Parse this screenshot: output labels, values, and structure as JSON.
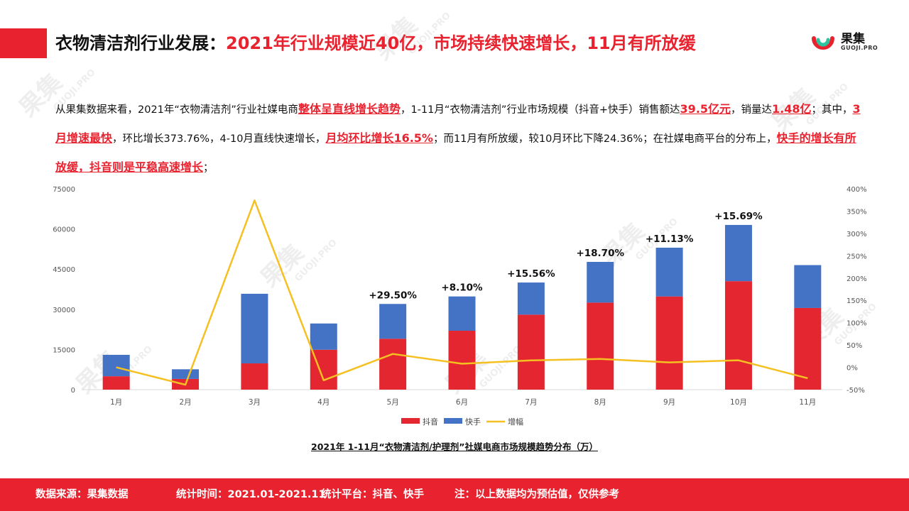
{
  "header": {
    "title_dark": "衣物清洁剂行业发展：",
    "title_red": "2021年行业规模近40亿，市场持续快速增长，11月有所放缓"
  },
  "logo": {
    "name_cn": "果集",
    "name_en": "GUOJI.PRO"
  },
  "watermark": {
    "text_cn": "果集",
    "text_en": "GUOJI.PRO"
  },
  "summary": {
    "p1": "从果集数据来看，2021年“衣物清洁剂”行业社媒电商",
    "hl1": "整体呈直线增长趋势",
    "p2": "，1-11月“衣物清洁剂”行业市场规模（抖音+快手）销售额达",
    "hl2": "39.5亿元",
    "p3": "，销量达",
    "hl3": "1.48亿",
    "p4": "；其中，",
    "hl4": "3月增速最快",
    "p5": "，环比增长373.76%，4-10月直线快速增长，",
    "hl5": "月均环比增长16.5%",
    "p6": "；而11月有所放缓，较10月环比下降24.36%；在社媒电商平台的分布上，",
    "hl6": "快手的增长有所放缓，抖音则是平稳高速增长",
    "p7": "；"
  },
  "chart_data": {
    "type": "bar",
    "stacked": true,
    "categories": [
      "1月",
      "2月",
      "3月",
      "4月",
      "5月",
      "6月",
      "7月",
      "8月",
      "9月",
      "10月",
      "11月"
    ],
    "series": [
      {
        "name": "抖音",
        "type": "bar",
        "color": "#e3262f",
        "values": [
          5000,
          4000,
          9800,
          14900,
          19000,
          22000,
          28000,
          32500,
          34800,
          40500,
          30500
        ]
      },
      {
        "name": "快手",
        "type": "bar",
        "color": "#4472c4",
        "values": [
          8000,
          3600,
          26000,
          9800,
          13000,
          12800,
          12000,
          15200,
          18200,
          21000,
          16000
        ]
      },
      {
        "name": "增幅",
        "type": "line",
        "axis": "right",
        "color": "#f5c022",
        "values": [
          0,
          -39,
          374,
          -29,
          30,
          8.1,
          15.6,
          18.7,
          11.1,
          15.7,
          -24.4
        ]
      }
    ],
    "data_labels": [
      "",
      "",
      "",
      "",
      "+29.50%",
      "+8.10%",
      "+15.56%",
      "+18.70%",
      "+11.13%",
      "+15.69%",
      ""
    ],
    "y_left": {
      "ylim": [
        0,
        75000
      ],
      "ticks": [
        "75000",
        "60000",
        "45000",
        "30000",
        "15000",
        "0"
      ]
    },
    "y_right": {
      "ylim": [
        -50,
        400
      ],
      "ticks": [
        "400%",
        "350%",
        "300%",
        "250%",
        "200%",
        "150%",
        "100%",
        "50%",
        "0%",
        "-50%"
      ]
    },
    "legend_position": "bottom",
    "caption": "2021年 1-11月“衣物清洁剂/护理剂”社媒电商市场规模趋势分布（万）"
  },
  "footer": {
    "source": "数据来源：果集数据",
    "period": "统计时间：2021.01-2021.11",
    "platform": "统计平台：抖音、快手",
    "note": "注：以上数据均为预估值，仅供参考"
  }
}
